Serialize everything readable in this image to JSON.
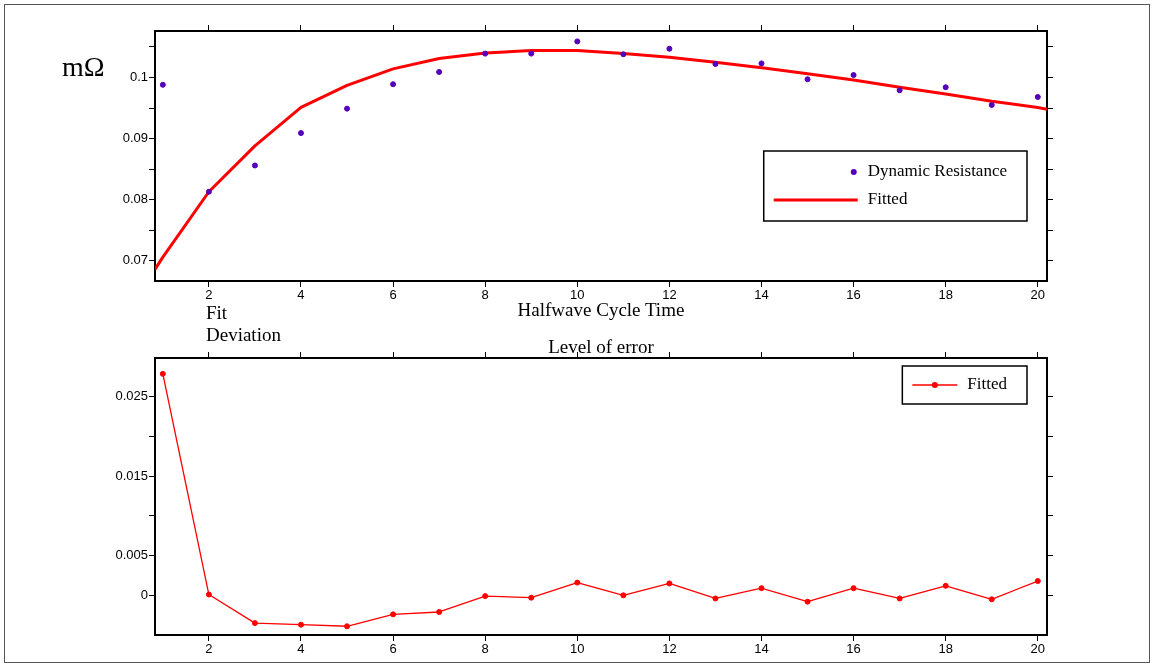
{
  "chart_data": [
    {
      "type": "line",
      "ylabel": "mΩ",
      "xlabel": "Halfwave Cycle Time",
      "xlim": [
        0.83,
        20.2
      ],
      "xticks": [
        2,
        4,
        6,
        8,
        10,
        12,
        14,
        16,
        18,
        20
      ],
      "ylim": [
        0.0667,
        0.1076
      ],
      "yticks": [
        0.07,
        {
          "value": 0.075,
          "label": null
        },
        0.08,
        {
          "value": 0.085,
          "label": null
        },
        0.09,
        {
          "value": 0.095,
          "label": null
        },
        0.1,
        {
          "value": 0.105,
          "label": null
        }
      ],
      "grid": false,
      "legend": "right",
      "series": [
        {
          "name": "Dynamic Resistance",
          "type": "scatter",
          "marker": "circle",
          "color": "#5500bb",
          "x": [
            1,
            2,
            3,
            4,
            5,
            6,
            7,
            8,
            9,
            10,
            11,
            12,
            13,
            14,
            15,
            16,
            17,
            18,
            19,
            20
          ],
          "values": [
            0.0988,
            0.0813,
            0.0856,
            0.0909,
            0.0949,
            0.0989,
            0.1009,
            0.1039,
            0.1039,
            0.1059,
            0.1038,
            0.1047,
            0.1022,
            0.1023,
            0.0997,
            0.1004,
            0.0979,
            0.0984,
            0.0955,
            0.0968
          ]
        },
        {
          "name": "Fitted",
          "type": "line",
          "marker": "none",
          "color": "#ff0000",
          "x": [
            0.83,
            1,
            2,
            3,
            4,
            5,
            6,
            7,
            8,
            9,
            10,
            11,
            12,
            13,
            14,
            15,
            16,
            17,
            18,
            19,
            20,
            20.2
          ],
          "values": [
            0.0686,
            0.0706,
            0.0813,
            0.0888,
            0.0951,
            0.0987,
            0.1014,
            0.1031,
            0.104,
            0.1044,
            0.1044,
            0.1039,
            0.1033,
            0.1025,
            0.1016,
            0.1006,
            0.0996,
            0.0984,
            0.0973,
            0.0961,
            0.0951,
            0.0948
          ]
        }
      ]
    },
    {
      "type": "line",
      "title": "Level of error",
      "ylabel": "Fit\nDeviation",
      "xlim": [
        0.83,
        20.2
      ],
      "xticks": [
        2,
        4,
        6,
        8,
        10,
        12,
        14,
        16,
        18,
        20
      ],
      "ylim": [
        -0.005,
        0.0299
      ],
      "yticks": [
        0,
        0.005,
        {
          "value": 0.01,
          "label": null
        },
        0.015,
        {
          "value": 0.02,
          "label": null
        },
        0.025
      ],
      "grid": false,
      "legend": "top right",
      "marker": "circle",
      "series": [
        {
          "name": "Fitted",
          "type": "line",
          "color": "#ff0000",
          "x": [
            1,
            2,
            3,
            4,
            5,
            6,
            7,
            8,
            9,
            10,
            11,
            12,
            13,
            14,
            15,
            16,
            17,
            18,
            19,
            20
          ],
          "values": [
            0.0279,
            0.0001,
            -0.0035,
            -0.0037,
            -0.0039,
            -0.0024,
            -0.0021,
            -0.0001,
            -0.0003,
            0.0016,
            0,
            0.0015,
            -0.0004,
            0.0009,
            -0.0008,
            0.0009,
            -0.0004,
            0.0012,
            -0.0005,
            0.0018
          ]
        }
      ]
    }
  ]
}
